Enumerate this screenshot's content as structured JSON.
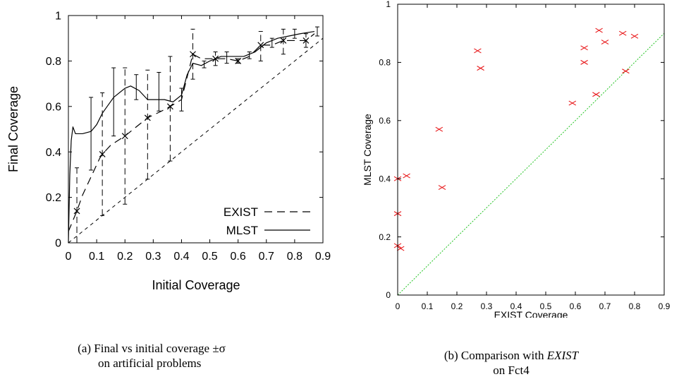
{
  "figure": {
    "caption_a_line1": "(a) Final vs initial coverage ±σ",
    "caption_a_line2": "on artificial problems",
    "caption_b_prefix": "(b) Comparison with ",
    "caption_b_italic": "EXIST",
    "caption_b_line2": "on Fct4"
  },
  "chart_data": [
    {
      "id": "a",
      "type": "line",
      "title": "",
      "xlabel": "Initial Coverage",
      "ylabel": "Final Coverage",
      "xlim": [
        0,
        0.9
      ],
      "ylim": [
        0,
        1
      ],
      "xticks": [
        "0",
        "0.1",
        "0.2",
        "0.3",
        "0.4",
        "0.5",
        "0.6",
        "0.7",
        "0.8",
        "0.9"
      ],
      "yticks": [
        "0",
        "0.2",
        "0.4",
        "0.6",
        "0.8",
        "1"
      ],
      "legend_position": "bottom-right",
      "grid": false,
      "series": [
        {
          "name": "EXIST",
          "style": "dashed",
          "points": [
            [
              0.0,
              0.05
            ],
            [
              0.03,
              0.14
            ],
            [
              0.05,
              0.21
            ],
            [
              0.08,
              0.29
            ],
            [
              0.11,
              0.37
            ],
            [
              0.12,
              0.39
            ],
            [
              0.15,
              0.43
            ],
            [
              0.2,
              0.47
            ],
            [
              0.24,
              0.51
            ],
            [
              0.28,
              0.55
            ],
            [
              0.33,
              0.58
            ],
            [
              0.36,
              0.6
            ],
            [
              0.4,
              0.63
            ],
            [
              0.44,
              0.83
            ],
            [
              0.47,
              0.81
            ],
            [
              0.52,
              0.81
            ],
            [
              0.56,
              0.81
            ],
            [
              0.6,
              0.8
            ],
            [
              0.64,
              0.82
            ],
            [
              0.68,
              0.87
            ],
            [
              0.72,
              0.87
            ],
            [
              0.76,
              0.89
            ],
            [
              0.8,
              0.89
            ],
            [
              0.84,
              0.89
            ],
            [
              0.87,
              0.92
            ]
          ],
          "markers": [
            [
              0.03,
              0.14
            ],
            [
              0.12,
              0.39
            ],
            [
              0.2,
              0.47
            ],
            [
              0.28,
              0.55
            ],
            [
              0.36,
              0.6
            ],
            [
              0.44,
              0.83
            ],
            [
              0.52,
              0.81
            ],
            [
              0.6,
              0.8
            ],
            [
              0.68,
              0.87
            ],
            [
              0.76,
              0.89
            ],
            [
              0.84,
              0.89
            ]
          ],
          "errorbars": [
            [
              0.03,
              0.0,
              0.33
            ],
            [
              0.12,
              0.12,
              0.66
            ],
            [
              0.2,
              0.17,
              0.77
            ],
            [
              0.28,
              0.28,
              0.76
            ],
            [
              0.36,
              0.36,
              0.82
            ],
            [
              0.44,
              0.72,
              0.94
            ],
            [
              0.52,
              0.78,
              0.84
            ],
            [
              0.6,
              0.79,
              0.81
            ],
            [
              0.68,
              0.8,
              0.93
            ],
            [
              0.76,
              0.83,
              0.94
            ],
            [
              0.84,
              0.86,
              0.92
            ]
          ]
        },
        {
          "name": "MLST",
          "style": "solid",
          "points": [
            [
              0.0,
              0.0
            ],
            [
              0.005,
              0.3
            ],
            [
              0.01,
              0.45
            ],
            [
              0.016,
              0.51
            ],
            [
              0.025,
              0.48
            ],
            [
              0.05,
              0.48
            ],
            [
              0.08,
              0.49
            ],
            [
              0.1,
              0.52
            ],
            [
              0.12,
              0.57
            ],
            [
              0.16,
              0.64
            ],
            [
              0.2,
              0.68
            ],
            [
              0.22,
              0.69
            ],
            [
              0.25,
              0.67
            ],
            [
              0.28,
              0.63
            ],
            [
              0.31,
              0.63
            ],
            [
              0.34,
              0.63
            ],
            [
              0.37,
              0.62
            ],
            [
              0.4,
              0.65
            ],
            [
              0.42,
              0.74
            ],
            [
              0.44,
              0.79
            ],
            [
              0.47,
              0.78
            ],
            [
              0.5,
              0.8
            ],
            [
              0.54,
              0.82
            ],
            [
              0.58,
              0.82
            ],
            [
              0.62,
              0.82
            ],
            [
              0.66,
              0.84
            ],
            [
              0.7,
              0.88
            ],
            [
              0.74,
              0.9
            ],
            [
              0.78,
              0.91
            ],
            [
              0.82,
              0.92
            ],
            [
              0.87,
              0.93
            ]
          ],
          "errorbars": [
            [
              0.08,
              0.32,
              0.64
            ],
            [
              0.16,
              0.47,
              0.77
            ],
            [
              0.24,
              0.63,
              0.74
            ],
            [
              0.32,
              0.58,
              0.75
            ],
            [
              0.4,
              0.58,
              0.68
            ],
            [
              0.48,
              0.77,
              0.8
            ],
            [
              0.56,
              0.79,
              0.84
            ],
            [
              0.64,
              0.81,
              0.84
            ],
            [
              0.72,
              0.86,
              0.9
            ],
            [
              0.8,
              0.9,
              0.94
            ],
            [
              0.88,
              0.91,
              0.95
            ]
          ]
        },
        {
          "name": "",
          "style": "dashed-thin",
          "points": [
            [
              0.0,
              0.0
            ],
            [
              0.9,
              0.9
            ]
          ]
        }
      ]
    },
    {
      "id": "b",
      "type": "scatter",
      "title": "",
      "xlabel": "EXIST Coverage",
      "ylabel": "MLST Coverage",
      "xlim": [
        0,
        0.9
      ],
      "ylim": [
        0,
        1
      ],
      "xticks": [
        "0",
        "0.1",
        "0.2",
        "0.3",
        "0.4",
        "0.5",
        "0.6",
        "0.7",
        "0.8",
        "0.9"
      ],
      "yticks": [
        "0",
        "0.2",
        "0.4",
        "0.6",
        "0.8",
        "1"
      ],
      "marker_color": "#e8181a",
      "diagonal_color": "#22c322",
      "grid": false,
      "points": [
        [
          0.0,
          0.4
        ],
        [
          0.0,
          0.28
        ],
        [
          0.0,
          0.17
        ],
        [
          0.01,
          0.16
        ],
        [
          0.03,
          0.41
        ],
        [
          0.14,
          0.57
        ],
        [
          0.15,
          0.37
        ],
        [
          0.27,
          0.84
        ],
        [
          0.28,
          0.78
        ],
        [
          0.59,
          0.66
        ],
        [
          0.63,
          0.85
        ],
        [
          0.63,
          0.8
        ],
        [
          0.67,
          0.69
        ],
        [
          0.68,
          0.91
        ],
        [
          0.7,
          0.87
        ],
        [
          0.76,
          0.9
        ],
        [
          0.77,
          0.77
        ],
        [
          0.8,
          0.89
        ]
      ]
    }
  ]
}
